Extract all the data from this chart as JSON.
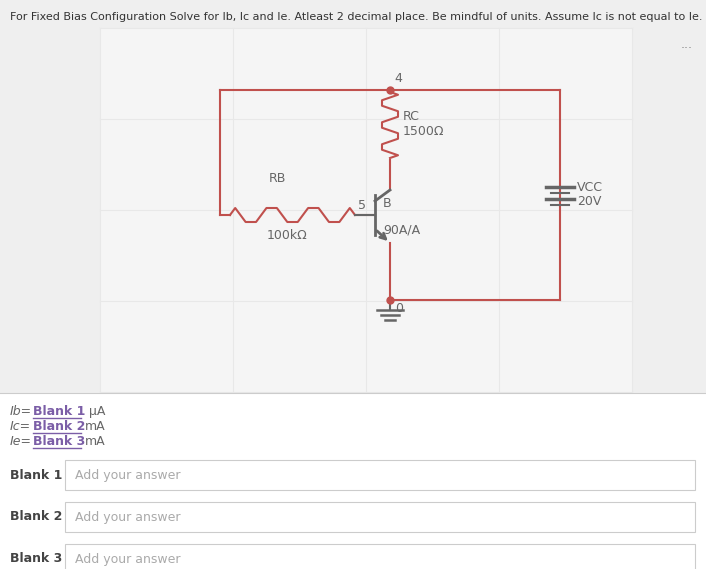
{
  "title": "For Fixed Bias Configuration Solve for Ib, Ic and Ie. Atleast 2 decimal place. Be mindful of units. Assume Ic is not equal to Ie.",
  "circuit_line_color": "#c0504d",
  "text_color": "#666666",
  "grid_color": "#e8e8e8",
  "bg_color": "#efefef",
  "circuit_bg": "#f5f5f5",
  "white_bg": "#ffffff",
  "rc_label": "RC",
  "rc_value": "1500Ω",
  "rb_label": "RB",
  "rb_value": "100kΩ",
  "vcc_label": "VCC",
  "vcc_value": "20V",
  "beta_label": "90A/A",
  "node4": "4",
  "node5": "5",
  "nodeB": "B",
  "node0": "0",
  "dots_label": "...",
  "purple": "#7b5ea7",
  "add_answer": "Add your answer"
}
